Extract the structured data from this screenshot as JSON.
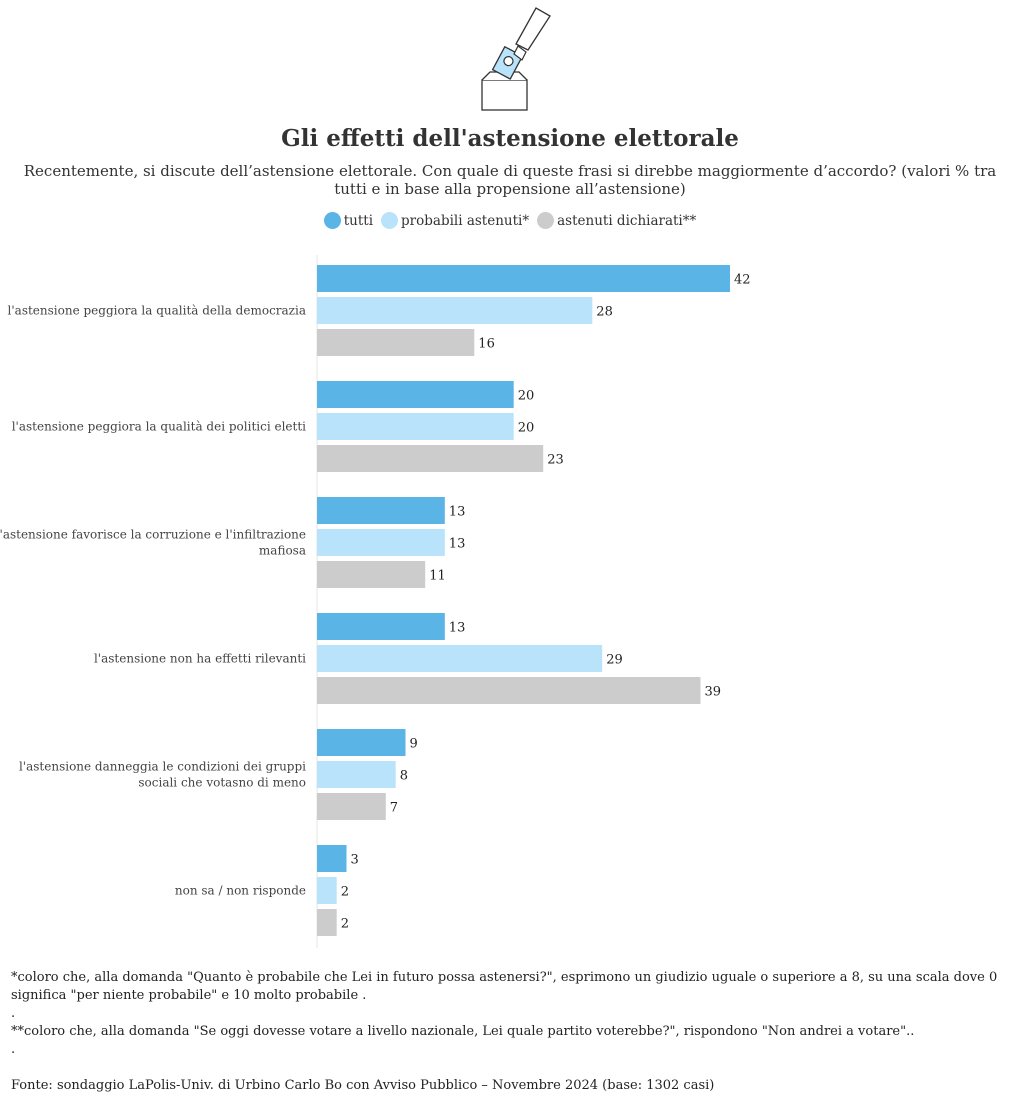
{
  "title": "Gli effetti dell'astensione elettorale",
  "subtitle": "Recentemente, si discute dell’astensione elettorale. Con quale di queste frasi si direbbe maggiormente d’accordo? (valori % tra tutti e in base alla propensione all’astensione)",
  "icon": "ballot-box-icon",
  "colors": {
    "tutti": "#5ab4e6",
    "probabili": "#b8e3fa",
    "dichiarati": "#cccccc"
  },
  "legend": [
    {
      "label": "tutti",
      "color": "#5ab4e6"
    },
    {
      "label": "probabili astenuti*",
      "color": "#b8e3fa"
    },
    {
      "label": "astenuti dichiarati**",
      "color": "#cccccc"
    }
  ],
  "chart_data": {
    "type": "bar",
    "orientation": "horizontal",
    "categories": [
      [
        "l'astensione peggiora la qualità della democrazia"
      ],
      [
        "l'astensione peggiora la qualità dei politici eletti"
      ],
      [
        "l'astensione favorisce la corruzione e l'infiltrazione",
        "mafiosa"
      ],
      [
        "l'astensione non ha effetti rilevanti"
      ],
      [
        "l'astensione danneggia le condizioni dei gruppi",
        "sociali che votasno di meno"
      ],
      [
        "non sa / non risponde"
      ]
    ],
    "series": [
      {
        "name": "tutti",
        "color": "#5ab4e6",
        "values": [
          42,
          20,
          13,
          13,
          9,
          3
        ]
      },
      {
        "name": "probabili astenuti*",
        "color": "#b8e3fa",
        "values": [
          28,
          20,
          13,
          29,
          8,
          2
        ]
      },
      {
        "name": "astenuti dichiarati**",
        "color": "#cccccc",
        "values": [
          16,
          23,
          11,
          39,
          7,
          2
        ]
      }
    ],
    "data_labels": true,
    "grid": false,
    "legend_position": "top-center"
  },
  "notes": [
    "*coloro che, alla domanda \"Quanto è probabile che Lei in futuro possa astenersi?\", esprimono un giudizio uguale o superiore a 8, su una scala dove 0 significa \"per niente probabile\" e 10 molto probabile .",
    ".",
    "**coloro che, alla domanda \"Se oggi dovesse votare a livello nazionale, Lei quale partito voterebbe?\", rispondono \"Non andrei a votare\"..",
    "."
  ],
  "source": "Fonte: sondaggio LaPolis-Univ. di Urbino Carlo Bo con Avviso Pubblico – Novembre 2024 (base: 1302 casi)"
}
